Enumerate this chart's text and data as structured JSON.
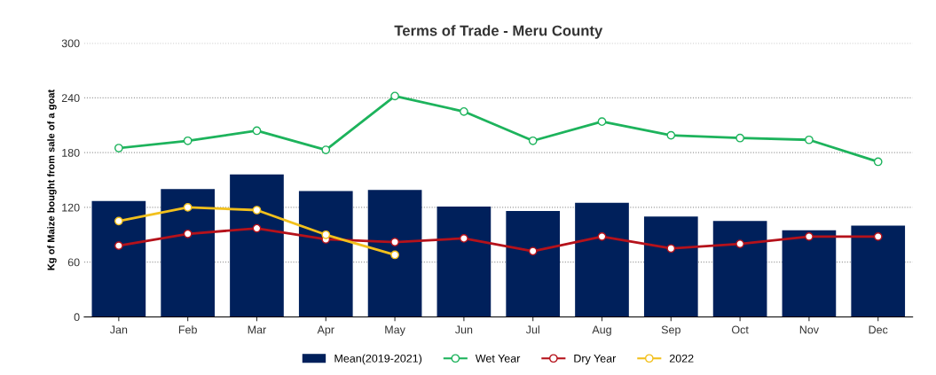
{
  "chart_data": {
    "type": "bar",
    "title": "Terms of Trade - Meru County",
    "ylabel": "Kg of Maize bought from sale of a goat",
    "categories": [
      "Jan",
      "Feb",
      "Mar",
      "Apr",
      "May",
      "Jun",
      "Jul",
      "Aug",
      "Sep",
      "Oct",
      "Nov",
      "Dec"
    ],
    "series": [
      {
        "name": "Mean(2019-2021)",
        "color": "#00205b",
        "values": [
          127,
          140,
          156,
          138,
          139,
          121,
          116,
          125,
          110,
          105,
          95,
          100
        ]
      },
      {
        "name": "Wet Year",
        "type": "line",
        "color": "#1db35c",
        "values": [
          185,
          193,
          204,
          183,
          242,
          225,
          193,
          214,
          199,
          196,
          194,
          170
        ]
      },
      {
        "name": "Dry Year",
        "type": "line",
        "color": "#b5121b",
        "values": [
          78,
          91,
          97,
          85,
          82,
          86,
          72,
          88,
          75,
          80,
          88,
          88
        ]
      },
      {
        "name": "2022",
        "type": "line",
        "color": "#f2c01c",
        "values": [
          105,
          120,
          117,
          90,
          68,
          null,
          null,
          null,
          null,
          null,
          null,
          null
        ]
      }
    ],
    "ylim": [
      0,
      300
    ],
    "yticks": [
      0,
      60,
      120,
      180,
      240,
      300
    ],
    "grid": "y",
    "legend": "bottom",
    "marker": "circle",
    "line_style": "solid"
  }
}
